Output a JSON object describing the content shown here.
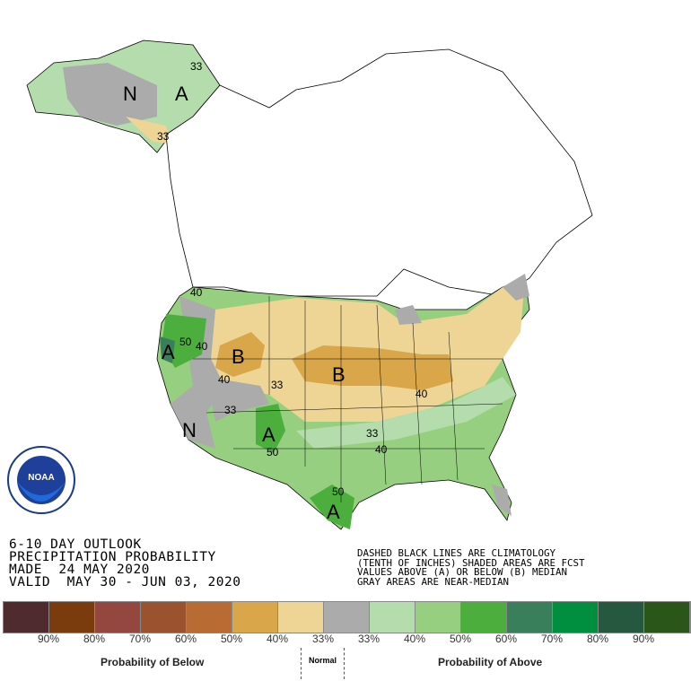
{
  "title_lines": [
    "6-10 DAY OUTLOOK",
    "PRECIPITATION PROBABILITY",
    "MADE  24 MAY 2020",
    "VALID  MAY 30 - JUN 03, 2020"
  ],
  "notes_lines": [
    "DASHED BLACK LINES ARE CLIMATOLOGY",
    "(TENTH OF INCHES) SHADED AREAS ARE FCST",
    "VALUES ABOVE (A) OR BELOW (B) MEDIAN",
    "GRAY AREAS ARE NEAR-MEDIAN"
  ],
  "logo": "NOAA",
  "legend": {
    "colors": [
      "#4f2b2f",
      "#7a3c0c",
      "#94473e",
      "#9b522f",
      "#b86b33",
      "#d9a64a",
      "#eed596",
      "#ababab",
      "#b4dcac",
      "#96cf80",
      "#4cae3c",
      "#3a7f5c",
      "#008f3e",
      "#265840",
      "#2b561a"
    ],
    "labels": [
      "90%",
      "80%",
      "70%",
      "60%",
      "50%",
      "40%",
      "33%",
      "33%",
      "40%",
      "50%",
      "60%",
      "70%",
      "80%",
      "90%"
    ],
    "below_caption": "Probability of Below",
    "normal_caption": "Normal",
    "above_caption": "Probability of Above"
  },
  "map_labels": {
    "ak_n": "N",
    "ak_a": "A",
    "west_a": "A",
    "west_n": "N",
    "sw_a": "A",
    "tx_a": "A",
    "nw_b": "B",
    "plains_b": "B",
    "c33a": "33",
    "c33b": "33",
    "c40a": "40",
    "c50a": "50",
    "c40b": "40",
    "c33c": "33",
    "c50b": "50",
    "c33d": "33",
    "c40c": "40",
    "c40d": "40",
    "c40e": "40",
    "c50c": "50",
    "c33e": "33"
  }
}
